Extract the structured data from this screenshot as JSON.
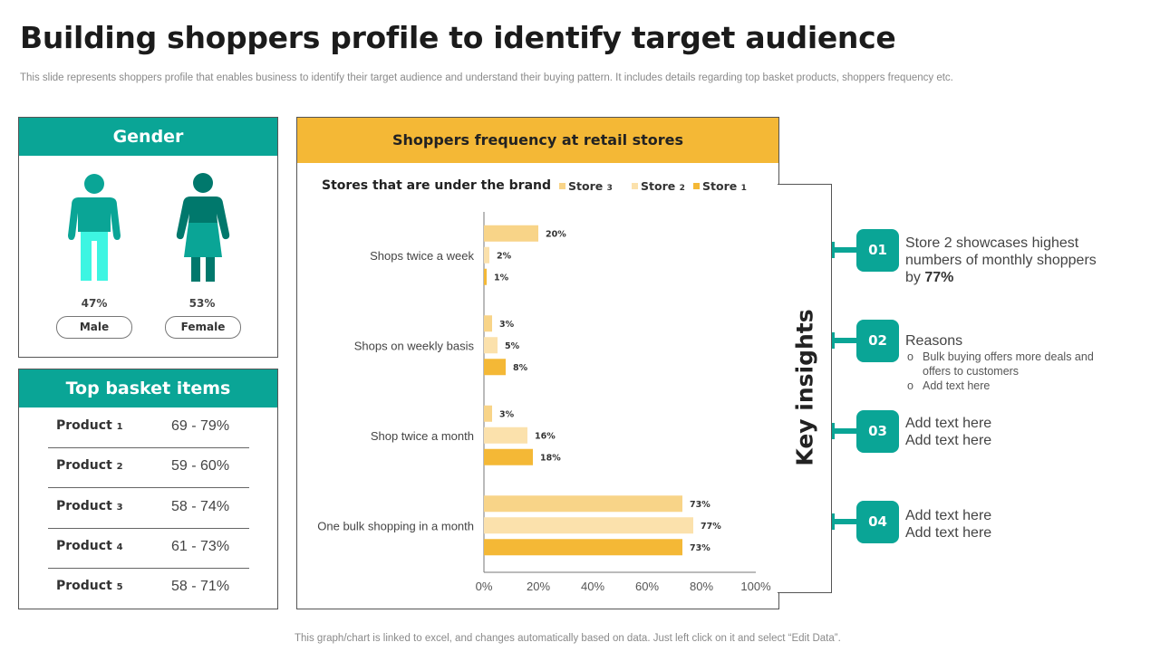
{
  "header": {
    "title": "Building shoppers profile to identify target audience",
    "subtitle": "This slide represents shoppers profile that enables business to identify their target audience and understand their buying pattern. It includes details regarding top basket products, shoppers frequency etc."
  },
  "gender": {
    "title": "Gender",
    "male": {
      "percent": "47%",
      "label": "Male"
    },
    "female": {
      "percent": "53%",
      "label": "Female"
    }
  },
  "basket": {
    "title": "Top basket items",
    "items": [
      {
        "product": "Product",
        "num": "1",
        "range": "69 - 79%"
      },
      {
        "product": "Product",
        "num": "2",
        "range": "59 - 60%"
      },
      {
        "product": "Product",
        "num": "3",
        "range": "58 - 74%"
      },
      {
        "product": "Product",
        "num": "4",
        "range": "61 - 73%"
      },
      {
        "product": "Product",
        "num": "5",
        "range": "58 - 71%"
      }
    ]
  },
  "chart_panel": {
    "title": "Shoppers frequency at retail stores"
  },
  "chart_data": {
    "type": "bar",
    "orientation": "horizontal",
    "title": "Stores that are under the brand",
    "categories": [
      "Shops twice a week",
      "Shops on weekly basis",
      "Shop twice a month",
      "One bulk shopping in a month"
    ],
    "series": [
      {
        "name": "Store 3",
        "color": "#f8d488",
        "values": [
          20,
          3,
          3,
          73
        ]
      },
      {
        "name": "Store 2",
        "color": "#fbe1ac",
        "values": [
          2,
          5,
          16,
          77
        ]
      },
      {
        "name": "Store 1",
        "color": "#f4b836",
        "values": [
          1,
          8,
          18,
          73
        ]
      }
    ],
    "legend": [
      {
        "name": "Store",
        "num": "3",
        "color": "#f8d488"
      },
      {
        "name": "Store",
        "num": "2",
        "color": "#fbe1ac"
      },
      {
        "name": "Store",
        "num": "1",
        "color": "#f4b836"
      }
    ],
    "xlim": [
      0,
      100
    ],
    "xticks": [
      "0%",
      "20%",
      "40%",
      "60%",
      "80%",
      "100%"
    ],
    "value_suffix": "%",
    "legend_position": "top-right",
    "grid": false
  },
  "insights": {
    "title": "Key insights",
    "items": [
      {
        "num": "01",
        "lines": [
          "Store 2 showcases highest",
          "numbers of monthly  shoppers"
        ],
        "last_prefix": "by ",
        "last_bold": "77%"
      },
      {
        "num": "02",
        "heading": "Reasons",
        "bullets": [
          "Bulk buying offers more deals and offers  to customers",
          "Add text here"
        ]
      },
      {
        "num": "03",
        "lines": [
          "Add text here",
          "Add text here"
        ]
      },
      {
        "num": "04",
        "lines": [
          "Add text here",
          "Add text here"
        ]
      }
    ]
  },
  "footer": {
    "note": "This graph/chart is linked to excel,  and changes automatically based on data. Just left click on it and select “Edit Data”."
  },
  "colors": {
    "teal": "#0aa596",
    "teal_dark": "#00786c",
    "male_legs": "#3df5e2",
    "amber": "#f4b836"
  },
  "icons": {
    "male": "male-person-icon",
    "female": "female-person-icon"
  }
}
